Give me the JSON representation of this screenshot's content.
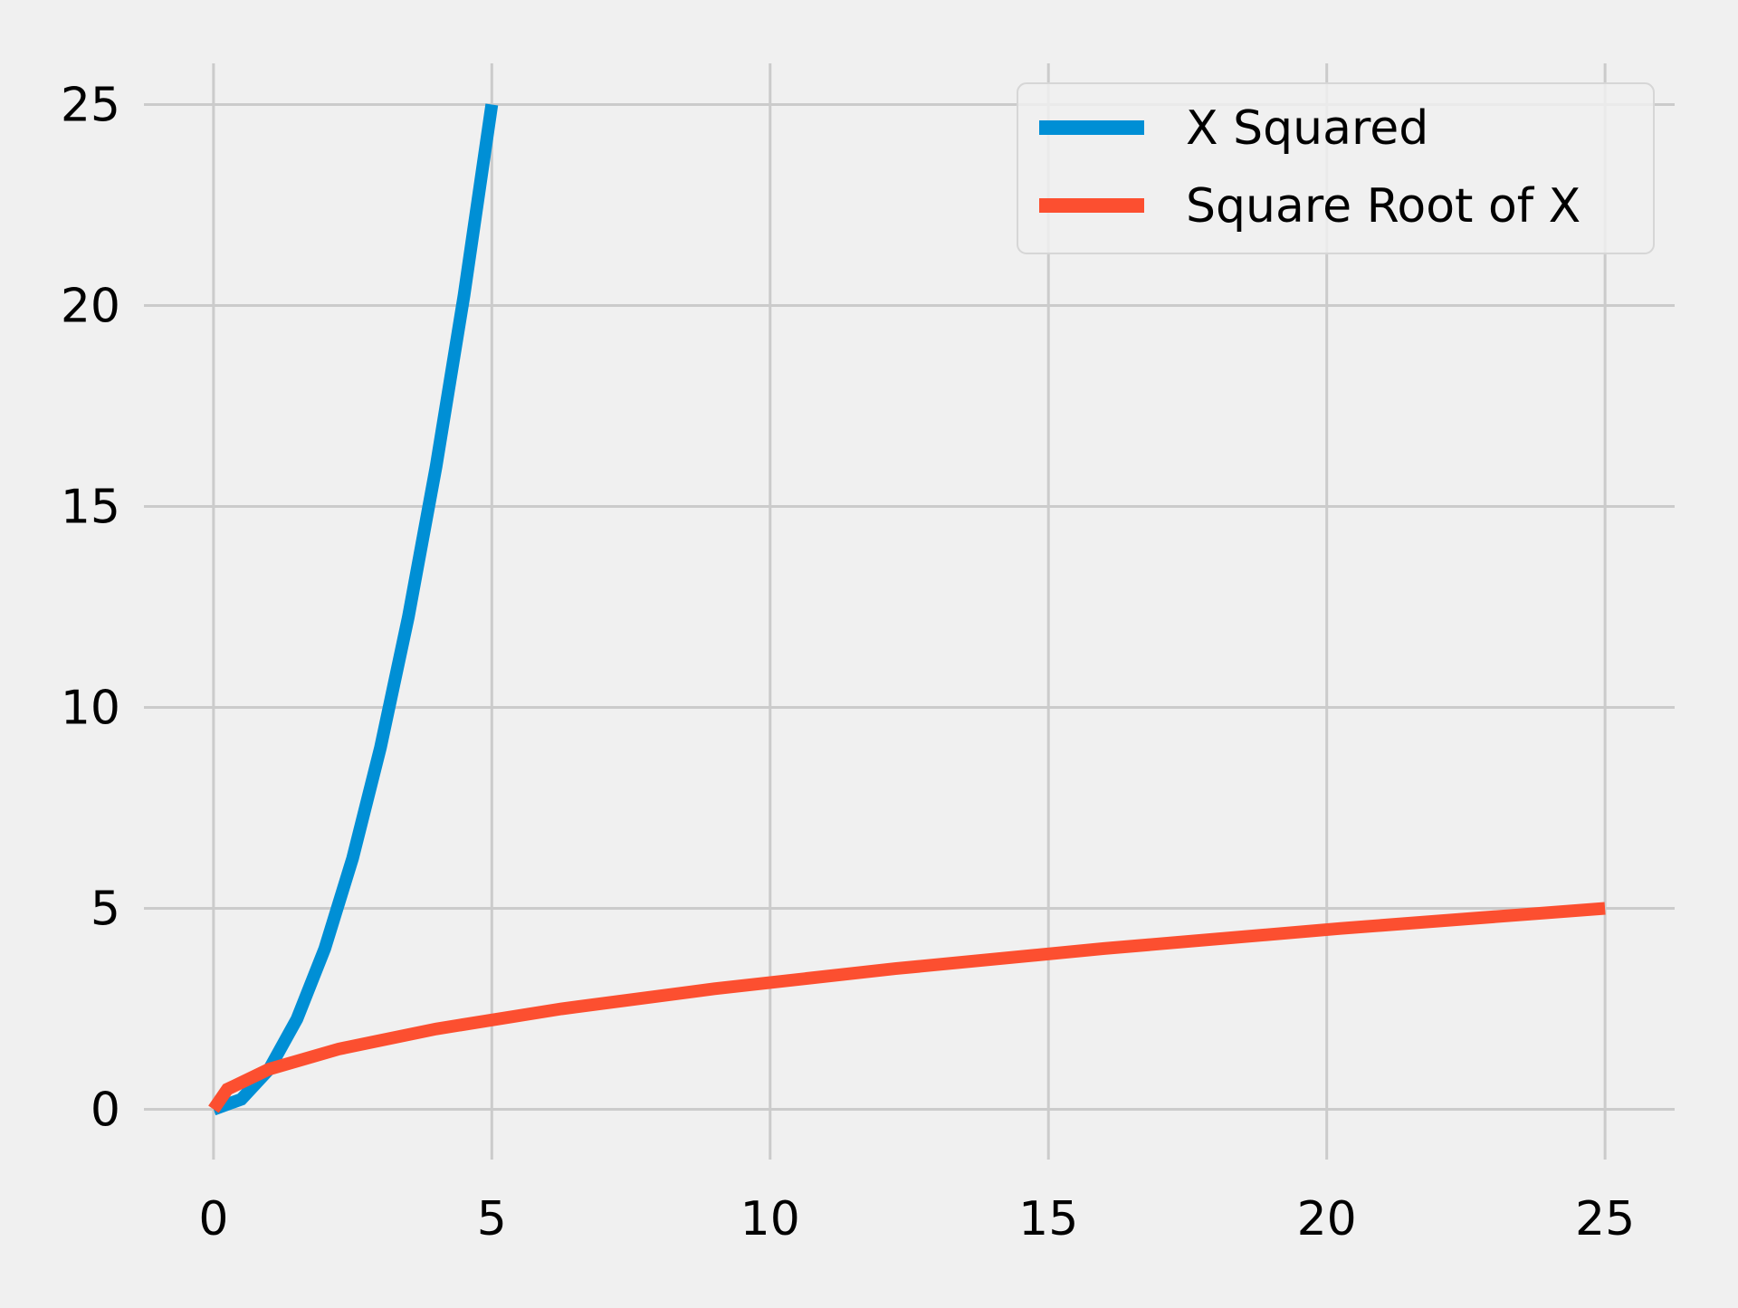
{
  "chart_data": {
    "type": "line",
    "title": "",
    "xlabel": "",
    "ylabel": "",
    "xlim": [
      -1.25,
      26.25
    ],
    "ylim": [
      -1.25,
      26.25
    ],
    "xticks": [
      0,
      5,
      10,
      15,
      20,
      25
    ],
    "yticks": [
      0,
      5,
      10,
      15,
      20,
      25
    ],
    "grid": true,
    "legend": {
      "placement": "top-right"
    },
    "series": [
      {
        "name": "X Squared",
        "color": "#008fd5",
        "x": [
          0,
          0.5,
          1,
          1.5,
          2,
          2.5,
          3,
          3.5,
          4,
          4.5,
          5
        ],
        "y": [
          0,
          0.25,
          1,
          2.25,
          4,
          6.25,
          9,
          12.25,
          16,
          20.25,
          25
        ]
      },
      {
        "name": "Square Root of X",
        "color": "#fc4f30",
        "x": [
          0,
          0.25,
          1,
          2.25,
          4,
          6.25,
          9,
          12.25,
          16,
          20.25,
          25
        ],
        "y": [
          0,
          0.5,
          1,
          1.5,
          2,
          2.5,
          3,
          3.5,
          4,
          4.5,
          5
        ]
      }
    ]
  },
  "colors": {
    "background": "#f0f0f0",
    "grid": "#cbcbcb",
    "text": "#000000"
  }
}
